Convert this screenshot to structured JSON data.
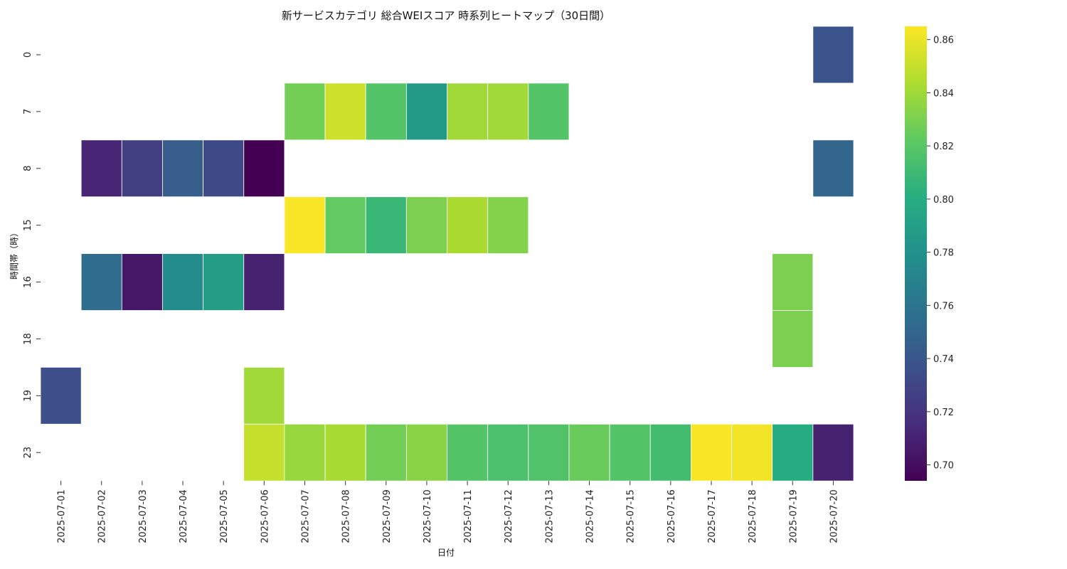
{
  "chart_data": {
    "type": "heatmap",
    "title": "新サービスカテゴリ 総合WEIスコア 時系列ヒートマップ（30日間）",
    "xlabel": "日付",
    "ylabel": "時間帯（時）",
    "x_categories": [
      "2025-07-01",
      "2025-07-02",
      "2025-07-03",
      "2025-07-04",
      "2025-07-05",
      "2025-07-06",
      "2025-07-07",
      "2025-07-08",
      "2025-07-09",
      "2025-07-10",
      "2025-07-11",
      "2025-07-12",
      "2025-07-13",
      "2025-07-14",
      "2025-07-15",
      "2025-07-16",
      "2025-07-17",
      "2025-07-18",
      "2025-07-19",
      "2025-07-20"
    ],
    "y_categories": [
      "0",
      "7",
      "8",
      "15",
      "16",
      "18",
      "19",
      "23"
    ],
    "values": [
      [
        null,
        null,
        null,
        null,
        null,
        null,
        null,
        null,
        null,
        null,
        null,
        null,
        null,
        null,
        null,
        null,
        null,
        null,
        null,
        0.738
      ],
      [
        null,
        null,
        null,
        null,
        null,
        null,
        0.828,
        0.852,
        0.818,
        0.786,
        0.84,
        0.84,
        0.818,
        null,
        null,
        null,
        null,
        null,
        null,
        null
      ],
      [
        null,
        0.712,
        0.725,
        0.744,
        0.732,
        0.694,
        null,
        null,
        null,
        null,
        null,
        null,
        null,
        null,
        null,
        null,
        null,
        null,
        null,
        0.75
      ],
      [
        null,
        null,
        null,
        null,
        null,
        null,
        0.864,
        0.823,
        0.808,
        0.83,
        0.843,
        0.832,
        null,
        null,
        null,
        null,
        null,
        null,
        null,
        null
      ],
      [
        null,
        0.754,
        0.705,
        0.777,
        0.788,
        0.71,
        null,
        null,
        null,
        null,
        null,
        null,
        null,
        null,
        null,
        null,
        null,
        null,
        0.83,
        null
      ],
      [
        null,
        null,
        null,
        null,
        null,
        null,
        null,
        null,
        null,
        null,
        null,
        null,
        null,
        null,
        null,
        null,
        null,
        null,
        0.83,
        null
      ],
      [
        0.735,
        null,
        null,
        null,
        null,
        0.84,
        null,
        null,
        null,
        null,
        null,
        null,
        null,
        null,
        null,
        null,
        null,
        null,
        null,
        null
      ],
      [
        null,
        null,
        null,
        null,
        null,
        0.85,
        0.838,
        0.842,
        0.828,
        0.834,
        0.818,
        0.815,
        0.817,
        0.825,
        0.818,
        0.812,
        0.864,
        0.862,
        0.799,
        0.71
      ]
    ],
    "colorbar": {
      "colormap": "viridis",
      "vmin": 0.694,
      "vmax": 0.865,
      "ticks": [
        "0.70",
        "0.72",
        "0.74",
        "0.76",
        "0.78",
        "0.80",
        "0.82",
        "0.84",
        "0.86"
      ]
    },
    "grid": false
  }
}
